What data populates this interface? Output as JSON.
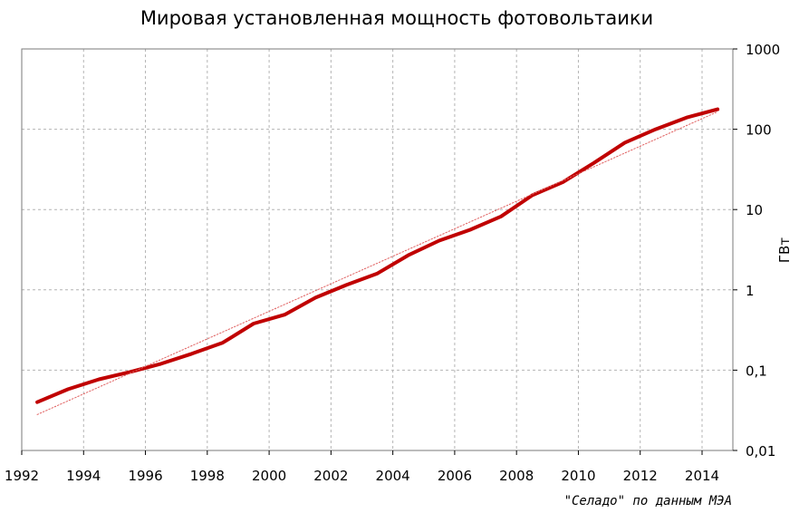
{
  "chart_data": {
    "type": "line",
    "title": "Мировая установленная мощность фотовольтаики",
    "ylabel": "ГВт",
    "xlabel": "",
    "y_scale": "log",
    "ylim": [
      0.01,
      1000
    ],
    "xlim": [
      1992,
      2015
    ],
    "grid": true,
    "x_tick_labels": [
      "1992",
      "1994",
      "1996",
      "1998",
      "2000",
      "2002",
      "2004",
      "2006",
      "2008",
      "2010",
      "2012",
      "2014"
    ],
    "y_tick_labels": [
      "0,01",
      "0,1",
      "1",
      "10",
      "100",
      "1000"
    ],
    "series": [
      {
        "color": "#c00000",
        "x": [
          1992.5,
          1993.5,
          1994.5,
          1995.5,
          1996.5,
          1997.5,
          1998.5,
          1999.5,
          2000.5,
          2001.5,
          2002.5,
          2003.5,
          2004.5,
          2005.5,
          2006.5,
          2007.5,
          2008.5,
          2009.5,
          2010.5,
          2011.5,
          2012.5,
          2013.5,
          2014.5
        ],
        "y": [
          0.04,
          0.058,
          0.077,
          0.095,
          0.12,
          0.16,
          0.22,
          0.38,
          0.49,
          0.8,
          1.15,
          1.6,
          2.7,
          4.1,
          5.6,
          8.2,
          15,
          22,
          38,
          68,
          100,
          140,
          177
        ]
      },
      {
        "color": "#e06060",
        "style": "dotted-trend",
        "x": [
          1992.5,
          2014.5
        ],
        "y": [
          0.028,
          165
        ]
      }
    ]
  },
  "source_note": "\"Селадо\" по данным МЭА"
}
